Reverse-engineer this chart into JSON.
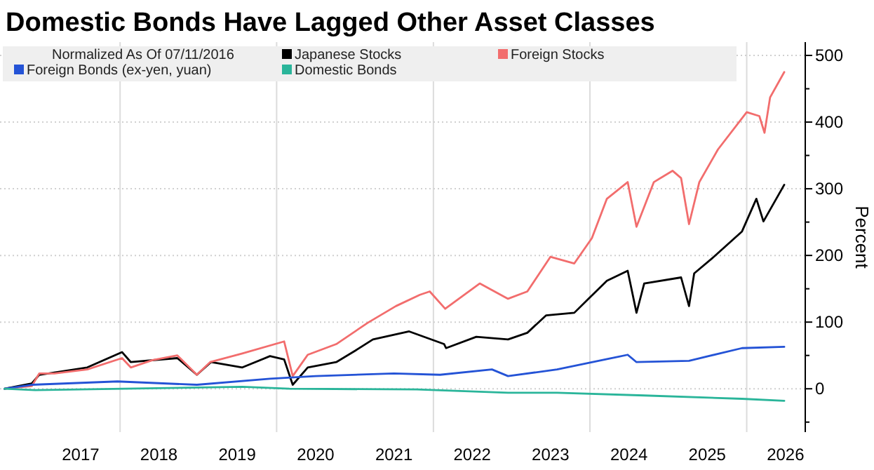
{
  "chart_data": {
    "type": "line",
    "title": "Domestic Bonds Have Lagged Other Asset Classes",
    "legend_title": "Normalized As Of 07/11/2016",
    "ylabel": "Percent",
    "legend": "top left",
    "grid": true,
    "marker": "none",
    "line_style": "solid",
    "xlim": [
      "2016-06-20",
      "2026-10-01"
    ],
    "xticks": [
      {
        "value": "2017-07-01",
        "label": "2017"
      },
      {
        "value": "2018-01-01",
        "label": null
      },
      {
        "value": "2018-07-01",
        "label": "2018"
      },
      {
        "value": "2019-07-01",
        "label": "2019"
      },
      {
        "value": "2020-01-01",
        "label": null
      },
      {
        "value": "2020-07-01",
        "label": "2020"
      },
      {
        "value": "2021-07-01",
        "label": "2021"
      },
      {
        "value": "2022-01-01",
        "label": null
      },
      {
        "value": "2022-07-01",
        "label": "2022"
      },
      {
        "value": "2023-07-01",
        "label": "2023"
      },
      {
        "value": "2024-01-01",
        "label": null
      },
      {
        "value": "2024-07-01",
        "label": "2024"
      },
      {
        "value": "2025-07-01",
        "label": "2025"
      },
      {
        "value": "2026-01-01",
        "label": null
      },
      {
        "value": "2026-07-01",
        "label": "2026"
      }
    ],
    "ylim": [
      -65,
      520
    ],
    "yticks": [
      {
        "value": -50,
        "label": null
      },
      0,
      {
        "value": 50,
        "label": null
      },
      100,
      {
        "value": 150,
        "label": null
      },
      200,
      {
        "value": 250,
        "label": null
      },
      300,
      {
        "value": 350,
        "label": null
      },
      400,
      {
        "value": 450,
        "label": null
      },
      500
    ],
    "series": [
      {
        "name": "Japanese Stocks",
        "color": "#000000",
        "x": [
          "2016-07-11",
          "2016-11-15",
          "2016-12-20",
          "2017-08-01",
          "2018-01-10",
          "2018-02-20",
          "2018-09-25",
          "2018-12-25",
          "2019-03-01",
          "2019-07-25",
          "2019-12-01",
          "2020-02-05",
          "2020-03-16",
          "2020-05-25",
          "2020-10-05",
          "2021-01-01",
          "2021-03-25",
          "2021-09-10",
          "2022-02-20",
          "2022-03-01",
          "2022-07-20",
          "2022-12-15",
          "2023-03-15",
          "2023-06-10",
          "2023-10-20",
          "2023-12-25",
          "2024-03-20",
          "2024-06-25",
          "2024-08-05",
          "2024-09-10",
          "2025-03-01",
          "2025-04-07",
          "2025-05-01",
          "2025-08-01",
          "2025-12-10",
          "2026-02-15",
          "2026-03-20",
          "2026-06-25"
        ],
        "values": [
          0,
          8,
          21,
          32,
          55,
          40,
          46,
          21,
          40,
          32,
          49,
          44,
          6,
          32,
          40,
          57,
          74,
          86,
          67,
          61,
          78,
          74,
          84,
          110,
          114,
          135,
          162,
          177,
          114,
          158,
          167,
          124,
          173,
          198,
          236,
          285,
          251,
          306
        ]
      },
      {
        "name": "Foreign Stocks",
        "color": "#f26d6d",
        "x": [
          "2016-07-11",
          "2016-11-15",
          "2016-12-20",
          "2017-03-01",
          "2017-08-01",
          "2018-01-10",
          "2018-02-20",
          "2018-06-01",
          "2018-09-25",
          "2018-12-25",
          "2019-02-25",
          "2019-07-25",
          "2020-02-05",
          "2020-03-16",
          "2020-05-25",
          "2020-10-05",
          "2021-03-01",
          "2021-07-10",
          "2021-10-30",
          "2021-12-15",
          "2022-02-25",
          "2022-08-05",
          "2022-12-15",
          "2023-03-15",
          "2023-07-01",
          "2023-10-20",
          "2024-01-10",
          "2024-03-20",
          "2024-06-25",
          "2024-08-05",
          "2024-10-25",
          "2025-01-20",
          "2025-03-01",
          "2025-04-07",
          "2025-05-25",
          "2025-08-20",
          "2026-01-01",
          "2026-03-01",
          "2026-03-25",
          "2026-04-20",
          "2026-06-25"
        ],
        "values": [
          0,
          4,
          23,
          23,
          29,
          46,
          32,
          43,
          50,
          21,
          40,
          53,
          71,
          19,
          51,
          67,
          99,
          124,
          141,
          146,
          120,
          158,
          135,
          146,
          198,
          188,
          226,
          285,
          310,
          243,
          310,
          327,
          316,
          247,
          310,
          359,
          415,
          409,
          384,
          437,
          475
        ]
      },
      {
        "name": "Foreign Bonds (ex-yen, yuan)",
        "color": "#2453d6",
        "x": [
          "2016-07-11",
          "2016-11-15",
          "2017-12-20",
          "2018-12-25",
          "2019-12-01",
          "2020-07-01",
          "2021-07-01",
          "2022-02-01",
          "2022-10-01",
          "2022-12-15",
          "2023-08-01",
          "2024-06-25",
          "2024-08-05",
          "2025-04-07",
          "2025-12-10",
          "2026-06-25"
        ],
        "values": [
          0,
          6,
          11,
          6,
          15,
          19,
          23,
          21,
          29,
          19,
          29,
          51,
          40,
          42,
          61,
          63
        ]
      },
      {
        "name": "Domestic Bonds",
        "color": "#2ab59a",
        "x": [
          "2016-07-11",
          "2016-12-01",
          "2019-07-25",
          "2020-03-01",
          "2021-10-15",
          "2022-12-15",
          "2023-08-01",
          "2024-09-10",
          "2025-12-10",
          "2026-06-25"
        ],
        "values": [
          0,
          -2,
          3,
          0,
          -1,
          -6,
          -6,
          -10,
          -15,
          -18
        ]
      }
    ]
  }
}
